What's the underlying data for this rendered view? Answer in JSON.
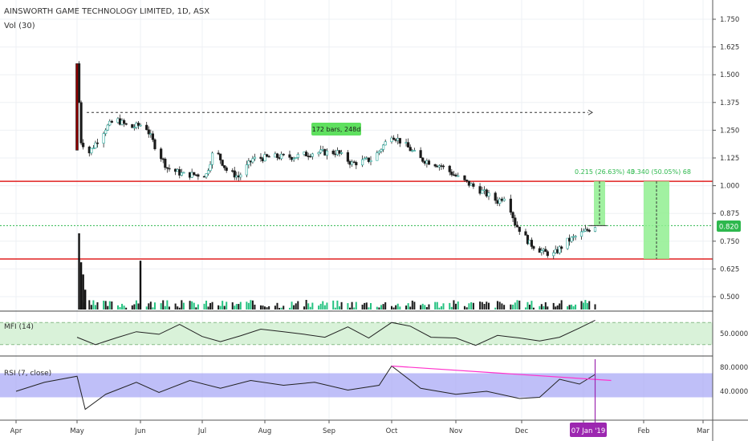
{
  "header": {
    "symbol_line": "AINSWORTH GAME TECHNOLOGY LIMITED, 1D, ASX",
    "volume_label": "Vol (30)"
  },
  "panels": {
    "mfi_label": "MFI (14)",
    "rsi_label": "RSI (7, close)"
  },
  "colors": {
    "up": "#26a69a",
    "down": "#1a1a1a",
    "volume_up": "#26c281",
    "support_line": "#e02020",
    "current_price_line": "#2db84d",
    "price_badge": "#2db84d",
    "rsi_band": "#a9a9f5",
    "mfi_band": "#d9f2d9",
    "trendline": "#ff33cc",
    "date_marker": "#9c27b0",
    "projection_box": "#90ee90"
  },
  "annotations": {
    "bars_range": "172 bars, 248d",
    "projection_1": "0.215 (26.63%) 43",
    "projection_2": "0.340 (50.05%) 68",
    "current_price": "0.820",
    "date_marker": "07 Jan '19"
  },
  "chart_data": [
    {
      "type": "candlestick",
      "price_axis_ticks": [
        "1.750",
        "1.625",
        "1.500",
        "1.375",
        "1.250",
        "1.125",
        "1.000",
        "0.875",
        "0.750",
        "0.625",
        "0.500"
      ],
      "ylim": [
        0.45,
        1.8
      ],
      "x_axis_ticks": [
        "Apr",
        "May",
        "Jun",
        "Jul",
        "Aug",
        "Sep",
        "Oct",
        "Nov",
        "Dec",
        "Jan",
        "Feb",
        "Mar"
      ],
      "horizontal_levels": [
        1.02,
        0.67
      ],
      "current_price": 0.82,
      "price_path": [
        {
          "date": "2018-05-01",
          "price": 1.55
        },
        {
          "date": "2018-05-03",
          "price": 1.2
        },
        {
          "date": "2018-05-07",
          "price": 1.15
        },
        {
          "date": "2018-05-15",
          "price": 1.26
        },
        {
          "date": "2018-05-20",
          "price": 1.3
        },
        {
          "date": "2018-05-27",
          "price": 1.26
        },
        {
          "date": "2018-06-03",
          "price": 1.28
        },
        {
          "date": "2018-06-08",
          "price": 1.18
        },
        {
          "date": "2018-06-14",
          "price": 1.08
        },
        {
          "date": "2018-06-22",
          "price": 1.05
        },
        {
          "date": "2018-07-03",
          "price": 1.05
        },
        {
          "date": "2018-07-07",
          "price": 1.17
        },
        {
          "date": "2018-07-13",
          "price": 1.07
        },
        {
          "date": "2018-07-19",
          "price": 1.04
        },
        {
          "date": "2018-07-26",
          "price": 1.12
        },
        {
          "date": "2018-08-05",
          "price": 1.13
        },
        {
          "date": "2018-08-15",
          "price": 1.13
        },
        {
          "date": "2018-08-25",
          "price": 1.15
        },
        {
          "date": "2018-09-05",
          "price": 1.15
        },
        {
          "date": "2018-09-12",
          "price": 1.1
        },
        {
          "date": "2018-09-22",
          "price": 1.12
        },
        {
          "date": "2018-10-01",
          "price": 1.23
        },
        {
          "date": "2018-10-08",
          "price": 1.18
        },
        {
          "date": "2018-10-15",
          "price": 1.12
        },
        {
          "date": "2018-10-25",
          "price": 1.09
        },
        {
          "date": "2018-11-03",
          "price": 1.03
        },
        {
          "date": "2018-11-12",
          "price": 0.98
        },
        {
          "date": "2018-11-20",
          "price": 0.93
        },
        {
          "date": "2018-11-24",
          "price": 0.96
        },
        {
          "date": "2018-11-28",
          "price": 0.83
        },
        {
          "date": "2018-12-05",
          "price": 0.74
        },
        {
          "date": "2018-12-12",
          "price": 0.7
        },
        {
          "date": "2018-12-17",
          "price": 0.69
        },
        {
          "date": "2018-12-24",
          "price": 0.75
        },
        {
          "date": "2019-01-01",
          "price": 0.79
        },
        {
          "date": "2019-01-07",
          "price": 0.82
        }
      ],
      "volume_spikes": [
        {
          "date": "2018-05-02",
          "relative": 1.0
        },
        {
          "date": "2018-05-03",
          "relative": 0.62
        },
        {
          "date": "2018-05-04",
          "relative": 0.46
        },
        {
          "date": "2018-05-05",
          "relative": 0.26
        },
        {
          "date": "2018-06-01",
          "relative": 0.64
        }
      ]
    },
    {
      "type": "line",
      "title": "MFI (14)",
      "axis_ticks": [
        "50.0000"
      ],
      "ylim": [
        0,
        100
      ],
      "band": [
        20,
        80
      ],
      "x": [
        "2018-05-01",
        "2018-05-10",
        "2018-05-20",
        "2018-05-30",
        "2018-06-10",
        "2018-06-20",
        "2018-07-01",
        "2018-07-10",
        "2018-07-20",
        "2018-07-30",
        "2018-08-10",
        "2018-08-20",
        "2018-08-30",
        "2018-09-10",
        "2018-09-20",
        "2018-10-01",
        "2018-10-10",
        "2018-10-20",
        "2018-11-01",
        "2018-11-10",
        "2018-11-20",
        "2018-11-30",
        "2018-12-10",
        "2018-12-20",
        "2018-12-30",
        "2019-01-07"
      ],
      "values": [
        40,
        20,
        38,
        55,
        48,
        75,
        42,
        28,
        44,
        62,
        55,
        48,
        40,
        68,
        38,
        80,
        70,
        40,
        38,
        18,
        45,
        38,
        30,
        40,
        65,
        86
      ]
    },
    {
      "type": "line",
      "title": "RSI (7, close)",
      "axis_ticks": [
        "80.0000",
        "40.0000"
      ],
      "ylim": [
        0,
        100
      ],
      "band": [
        30,
        70
      ],
      "x": [
        "2018-04-01",
        "2018-04-15",
        "2018-05-01",
        "2018-05-05",
        "2018-05-15",
        "2018-05-30",
        "2018-06-10",
        "2018-06-25",
        "2018-07-10",
        "2018-07-25",
        "2018-08-10",
        "2018-08-25",
        "2018-09-10",
        "2018-09-25",
        "2018-10-01",
        "2018-10-15",
        "2018-11-01",
        "2018-11-15",
        "2018-11-30",
        "2018-12-10",
        "2018-12-20",
        "2018-12-30",
        "2019-01-07"
      ],
      "values": [
        40,
        55,
        65,
        10,
        35,
        55,
        38,
        58,
        45,
        58,
        50,
        55,
        42,
        50,
        82,
        45,
        35,
        40,
        28,
        30,
        60,
        52,
        68
      ],
      "trendline": [
        [
          "2018-10-01",
          82
        ],
        [
          "2019-01-07",
          58
        ]
      ]
    }
  ]
}
